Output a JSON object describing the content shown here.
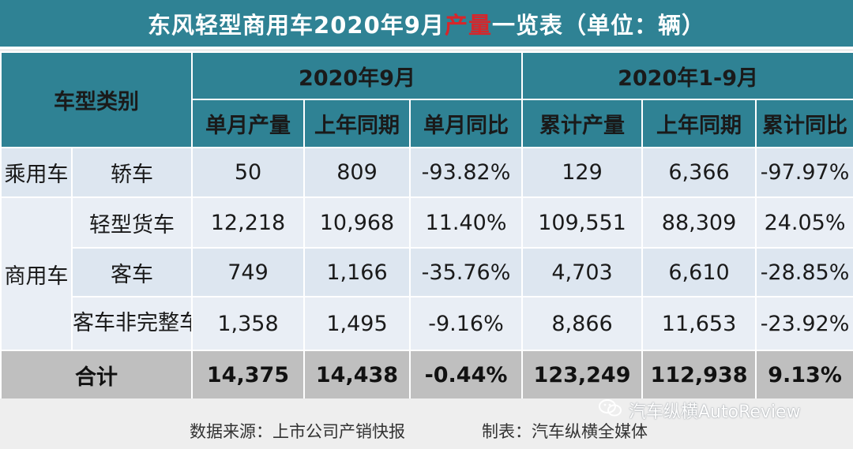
{
  "title": {
    "before": "东风轻型商用车2020年9月",
    "highlight": "产量",
    "after": "一览表（单位：辆）"
  },
  "header": {
    "category": "车型类别",
    "group_month": "2020年9月",
    "group_ytd": "2020年1-9月",
    "cols": [
      "单月产量",
      "上年同期",
      "单月同比",
      "累计产量",
      "上年同期",
      "累计同比"
    ]
  },
  "rows": [
    {
      "group": "乘用车",
      "type": "轿车",
      "v": [
        "50",
        "809",
        "-93.82%",
        "129",
        "6,366",
        "-97.97%"
      ]
    },
    {
      "group": "商用车",
      "type": "轻型货车",
      "v": [
        "12,218",
        "10,968",
        "11.40%",
        "109,551",
        "88,309",
        "24.05%"
      ]
    },
    {
      "type": "客车",
      "v": [
        "749",
        "1,166",
        "-35.76%",
        "4,703",
        "6,610",
        "-28.85%"
      ]
    },
    {
      "type": "客车非完整车辆",
      "v": [
        "1,358",
        "1,495",
        "-9.16%",
        "8,866",
        "11,653",
        "-23.92%"
      ]
    }
  ],
  "total": {
    "label": "合计",
    "v": [
      "14,375",
      "14,438",
      "-0.44%",
      "123,249",
      "112,938",
      "9.13%"
    ]
  },
  "footer": {
    "source": "数据来源：上市公司产销快报",
    "maker": "制表：汽车纵横全媒体",
    "watermark": "汽车纵横AutoReview"
  },
  "colors": {
    "header_bg": "#2f8294",
    "negative": "#e0241f",
    "highlight": "#d6262b",
    "total_bg": "#bfbfbf"
  },
  "icons": {
    "watermark": "wechat-icon"
  }
}
